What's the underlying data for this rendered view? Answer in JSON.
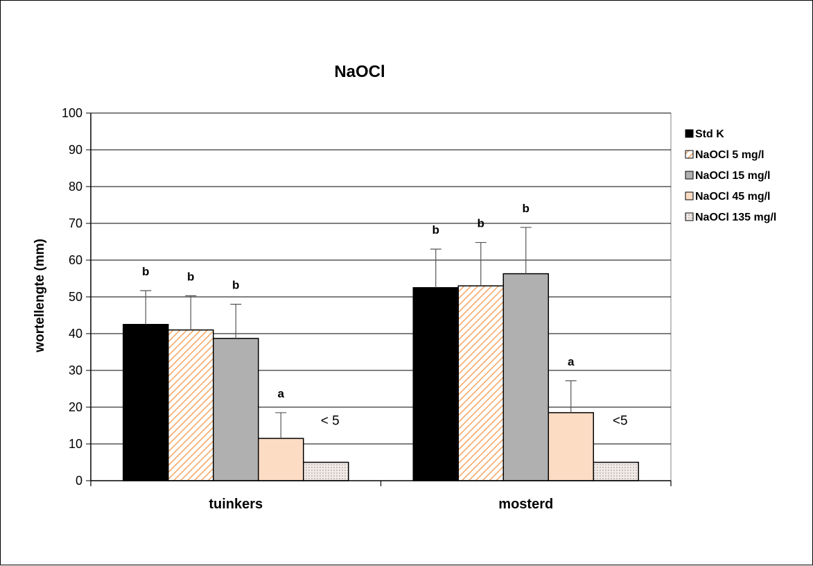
{
  "chart_data": {
    "type": "bar",
    "title": "NaOCl",
    "xlabel": "",
    "ylabel": "wortellengte (mm)",
    "ylim": [
      0,
      100
    ],
    "yticks": [
      0,
      10,
      20,
      30,
      40,
      50,
      60,
      70,
      80,
      90,
      100
    ],
    "grid": true,
    "legend_position": "right",
    "categories": [
      "tuinkers",
      "mosterd"
    ],
    "series": [
      {
        "name": "Std K",
        "values": [
          42.5,
          52.5
        ],
        "errors": [
          9.2,
          10.5
        ],
        "letters": [
          "b",
          "b"
        ],
        "fill": "solid",
        "color": "#000000"
      },
      {
        "name": "NaOCl 5 mg/l",
        "values": [
          41,
          53
        ],
        "errors": [
          9.3,
          11.8
        ],
        "letters": [
          "b",
          "b"
        ],
        "fill": "hatch",
        "color": "#f4a460"
      },
      {
        "name": "NaOCl 15 mg/l",
        "values": [
          38.7,
          56.3
        ],
        "errors": [
          9.3,
          12.6
        ],
        "letters": [
          "b",
          "b"
        ],
        "fill": "solid",
        "color": "#b0b0b0"
      },
      {
        "name": "NaOCl 45 mg/l",
        "values": [
          11.5,
          18.5
        ],
        "errors": [
          7,
          8.7
        ],
        "letters": [
          "a",
          "a"
        ],
        "fill": "solid",
        "color": "#fddcc4"
      },
      {
        "name": "NaOCl 135 mg/l",
        "values": [
          5,
          5
        ],
        "errors": [
          0,
          0
        ],
        "letters": [
          "< 5",
          "<5"
        ],
        "fill": "dots",
        "color": "#e8e0dc"
      }
    ]
  }
}
